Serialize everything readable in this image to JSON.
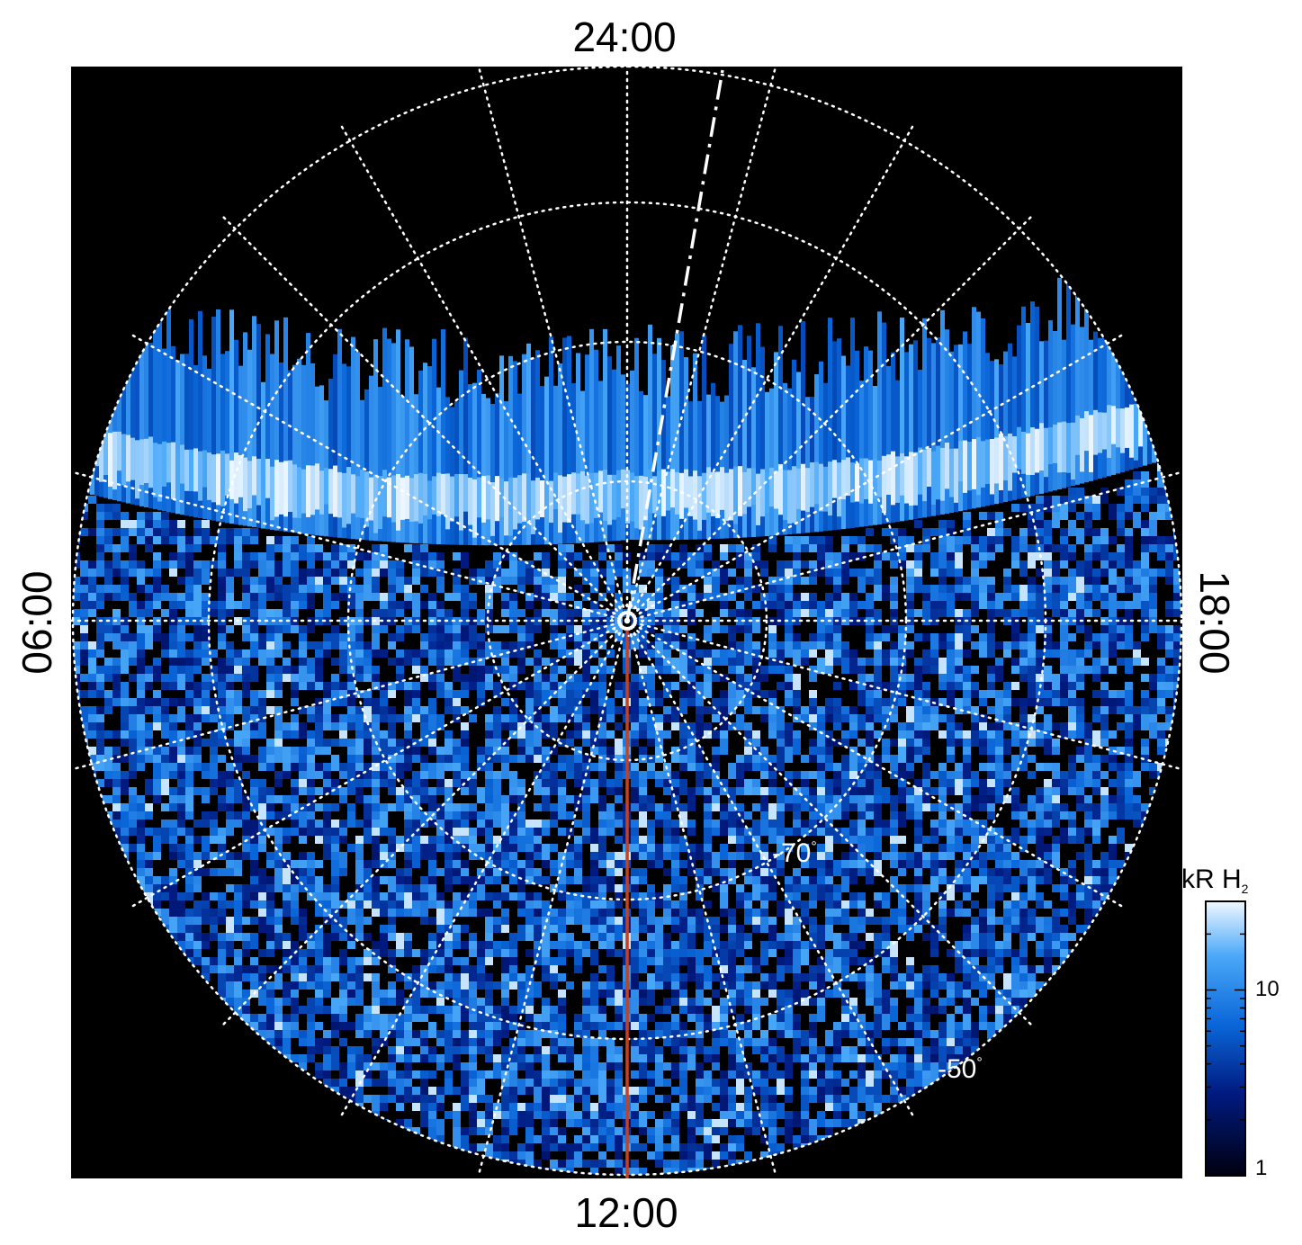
{
  "plot": {
    "local_time_labels": {
      "top": "24:00",
      "bottom": "12:00",
      "left": "06:00",
      "right": "18:00"
    },
    "latitude_labels": [
      "-70",
      "-50"
    ],
    "degree_symbol": "°",
    "colors": {
      "background": "#000000",
      "grid": "#ffffff",
      "meridian_line": "#c8401e",
      "emission_low": "#000014",
      "emission_mid": "#1e7be6",
      "emission_high": "#ffffff"
    }
  },
  "colorbar": {
    "title": "kR H",
    "title_subscript": "2",
    "tick_labels": [
      "10",
      "1"
    ],
    "scale": "log",
    "range": [
      1,
      30
    ]
  }
}
